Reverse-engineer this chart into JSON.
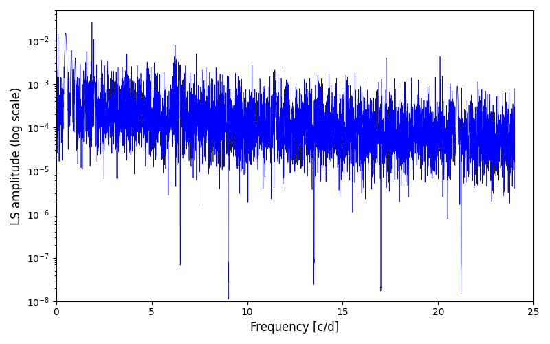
{
  "title": "",
  "xlabel": "Frequency [c/d]",
  "ylabel": "LS amplitude (log scale)",
  "xlim": [
    0,
    25
  ],
  "ylim": [
    1e-08,
    0.05
  ],
  "line_color": "#0000FF",
  "line_width": 0.5,
  "background_color": "#ffffff",
  "seed": 12345,
  "n_points": 5000,
  "freq_max": 24.0,
  "figsize": [
    8.0,
    5.0
  ],
  "dpi": 100
}
